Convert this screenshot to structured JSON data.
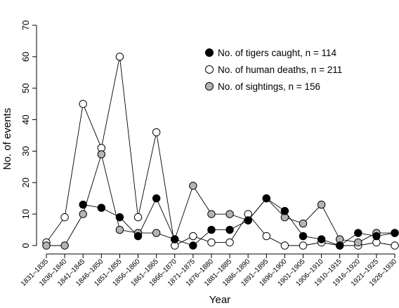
{
  "chart_data": {
    "type": "line",
    "xlabel": "Year",
    "ylabel": "No. of events",
    "ylim": [
      0,
      70
    ],
    "yticks": [
      0,
      10,
      20,
      30,
      40,
      50,
      60,
      70
    ],
    "categories": [
      "1831–1835",
      "1836–1840",
      "1841–1845",
      "1846–1850",
      "1851–1855",
      "1856–1860",
      "1861–1865",
      "1866–1870",
      "1871–1875",
      "1876–1880",
      "1881–1885",
      "1886–1890",
      "1891–1895",
      "1896–1900",
      "1901–1905",
      "1906–1910",
      "1910–1915",
      "1916–1920",
      "1921–1925",
      "1926–1930"
    ],
    "legend_position": "top-right",
    "grid": false,
    "series": [
      {
        "name": "No. of human deaths, n = 211",
        "color": "#ffffff",
        "values": [
          1,
          9,
          45,
          31,
          60,
          9,
          36,
          0,
          3,
          1,
          1,
          10,
          3,
          0,
          0,
          1,
          0,
          0,
          1,
          0
        ]
      },
      {
        "name": "No. of sightings, n = 156",
        "color": "#b4b4b4",
        "values": [
          0,
          0,
          10,
          29,
          5,
          4,
          4,
          2,
          19,
          10,
          10,
          8,
          15,
          9,
          7,
          13,
          2,
          1,
          4,
          4
        ]
      },
      {
        "name": "No. of tigers caught, n = 114",
        "color": "#000000",
        "values": [
          null,
          null,
          13,
          12,
          9,
          3,
          15,
          2,
          0,
          5,
          5,
          8,
          15,
          11,
          3,
          2,
          0,
          4,
          3,
          4
        ]
      }
    ],
    "legend_order": [
      2,
      0,
      1
    ]
  }
}
